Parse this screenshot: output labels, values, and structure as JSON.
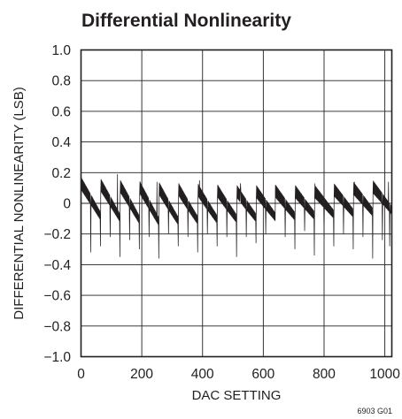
{
  "chart_data": {
    "type": "line",
    "title": "Differential Nonlinearity",
    "xlabel": "DAC SETTING",
    "ylabel": "DIFFERENTIAL NONLINEARITY (LSB)",
    "xlim": [
      0,
      1023
    ],
    "ylim": [
      -1.0,
      1.0
    ],
    "x_ticks": [
      0,
      200,
      400,
      600,
      800,
      1000
    ],
    "x_tick_labels": [
      "0",
      "200",
      "400",
      "600",
      "800",
      "1000"
    ],
    "y_ticks": [
      -1.0,
      -0.8,
      -0.6,
      -0.4,
      -0.2,
      0,
      0.2,
      0.4,
      0.6,
      0.8,
      1.0
    ],
    "y_tick_labels": [
      "−1.0",
      "−0.8",
      "−0.6",
      "−0.4",
      "−0.2",
      "0",
      "0.2",
      "0.4",
      "0.6",
      "0.8",
      "1.0"
    ],
    "grid": true,
    "legend": "none",
    "figure_id": "6903 G01",
    "series": [
      {
        "color": "#231f20",
        "segment_length": 64,
        "envelope_high": [
          [
            0,
            0.13
          ],
          [
            256,
            0.1
          ],
          [
            512,
            0.08
          ],
          [
            768,
            0.08
          ],
          [
            1023,
            0.12
          ]
        ],
        "envelope_low": [
          [
            0,
            -0.07
          ],
          [
            256,
            -0.12
          ],
          [
            512,
            -0.1
          ],
          [
            768,
            -0.08
          ],
          [
            1023,
            -0.05
          ]
        ],
        "glitches": [
          {
            "x": 32,
            "y": -0.32
          },
          {
            "x": 64,
            "y": -0.28
          },
          {
            "x": 96,
            "y": -0.22
          },
          {
            "x": 128,
            "y": -0.35
          },
          {
            "x": 160,
            "y": -0.24
          },
          {
            "x": 192,
            "y": -0.3
          },
          {
            "x": 224,
            "y": -0.22
          },
          {
            "x": 256,
            "y": -0.36
          },
          {
            "x": 288,
            "y": -0.2
          },
          {
            "x": 320,
            "y": -0.28
          },
          {
            "x": 352,
            "y": -0.22
          },
          {
            "x": 384,
            "y": -0.32
          },
          {
            "x": 416,
            "y": -0.2
          },
          {
            "x": 448,
            "y": -0.28
          },
          {
            "x": 480,
            "y": -0.22
          },
          {
            "x": 512,
            "y": -0.35
          },
          {
            "x": 544,
            "y": -0.22
          },
          {
            "x": 576,
            "y": -0.26
          },
          {
            "x": 608,
            "y": -0.2
          },
          {
            "x": 640,
            "y": -0.32
          },
          {
            "x": 672,
            "y": -0.22
          },
          {
            "x": 704,
            "y": -0.3
          },
          {
            "x": 736,
            "y": -0.18
          },
          {
            "x": 768,
            "y": -0.34
          },
          {
            "x": 800,
            "y": -0.22
          },
          {
            "x": 832,
            "y": -0.28
          },
          {
            "x": 864,
            "y": -0.2
          },
          {
            "x": 896,
            "y": -0.3
          },
          {
            "x": 928,
            "y": -0.22
          },
          {
            "x": 960,
            "y": -0.36
          },
          {
            "x": 992,
            "y": -0.24
          },
          {
            "x": 1016,
            "y": -0.28
          }
        ],
        "spikes_up": [
          {
            "x": 120,
            "y": 0.19
          },
          {
            "x": 250,
            "y": 0.14
          },
          {
            "x": 390,
            "y": 0.15
          },
          {
            "x": 525,
            "y": 0.13
          },
          {
            "x": 640,
            "y": 0.12
          },
          {
            "x": 770,
            "y": 0.13
          },
          {
            "x": 900,
            "y": 0.14
          },
          {
            "x": 1012,
            "y": 0.14
          }
        ]
      }
    ]
  }
}
